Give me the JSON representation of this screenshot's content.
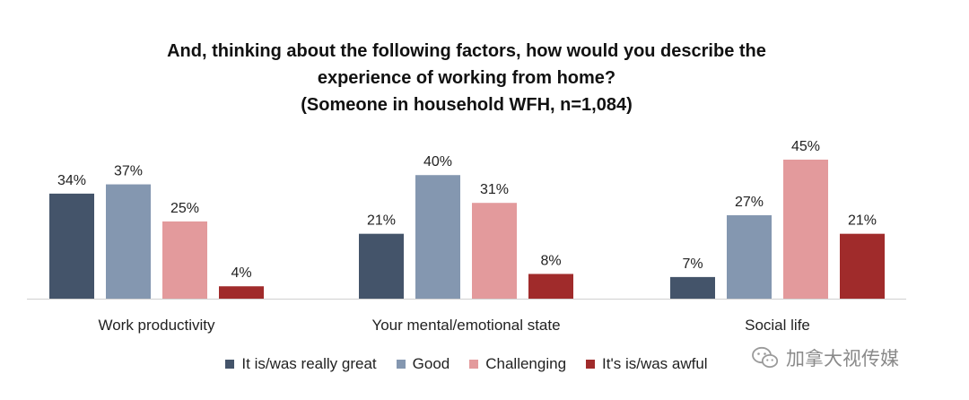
{
  "colors": {
    "great": "#44546a",
    "good": "#8497b0",
    "challenging": "#e39a9c",
    "awful": "#a02b2b",
    "axis": "#d0d0d0",
    "text": "#222222"
  },
  "chart_data": {
    "type": "bar",
    "title_lines": [
      "And, thinking about the following factors, how would you describe the",
      "experience of working from home?",
      "(Someone in household WFH, n=1,084)"
    ],
    "categories": [
      "Work productivity",
      "Your mental/emotional state",
      "Social life"
    ],
    "series": [
      {
        "name": "It is/was really great",
        "color_key": "great",
        "values": [
          34,
          21,
          7
        ]
      },
      {
        "name": "Good",
        "color_key": "good",
        "values": [
          37,
          40,
          27
        ]
      },
      {
        "name": "Challenging",
        "color_key": "challenging",
        "values": [
          25,
          31,
          45
        ]
      },
      {
        "name": "It's is/was awful",
        "color_key": "awful",
        "values": [
          4,
          8,
          21
        ]
      }
    ],
    "value_suffix": "%",
    "ylim": [
      0,
      45
    ],
    "grid": false,
    "legend_position": "bottom"
  },
  "watermark": {
    "text": "加拿大视传媒",
    "icon": "wechat-icon"
  }
}
